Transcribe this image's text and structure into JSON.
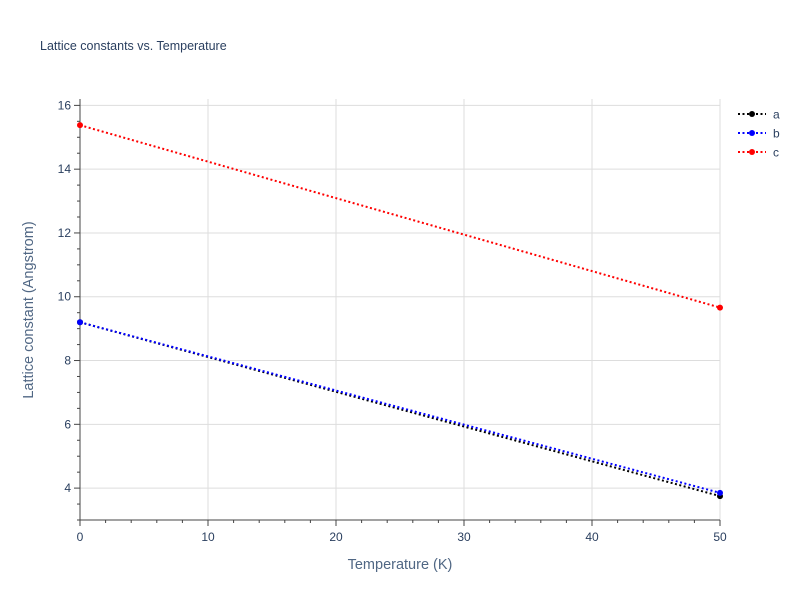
{
  "chart_data": {
    "type": "line",
    "title": "Lattice constants vs. Temperature",
    "xlabel": "Temperature (K)",
    "ylabel": "Lattice constant (Angstrom)",
    "xlim": [
      0,
      50
    ],
    "ylim": [
      3,
      16.2
    ],
    "x_ticks": [
      0,
      10,
      20,
      30,
      40,
      50
    ],
    "y_ticks": [
      4,
      6,
      8,
      10,
      12,
      14,
      16
    ],
    "grid": true,
    "legend_position": "top-right",
    "series": [
      {
        "name": "a",
        "color": "#000000",
        "line_style": "dotted",
        "x": [
          0,
          50
        ],
        "y": [
          9.2,
          3.75
        ]
      },
      {
        "name": "b",
        "color": "#0000ff",
        "line_style": "dotted",
        "x": [
          0,
          50
        ],
        "y": [
          9.2,
          3.85
        ]
      },
      {
        "name": "c",
        "color": "#ff0000",
        "line_style": "dotted",
        "x": [
          0,
          50
        ],
        "y": [
          15.38,
          9.66
        ]
      }
    ]
  }
}
